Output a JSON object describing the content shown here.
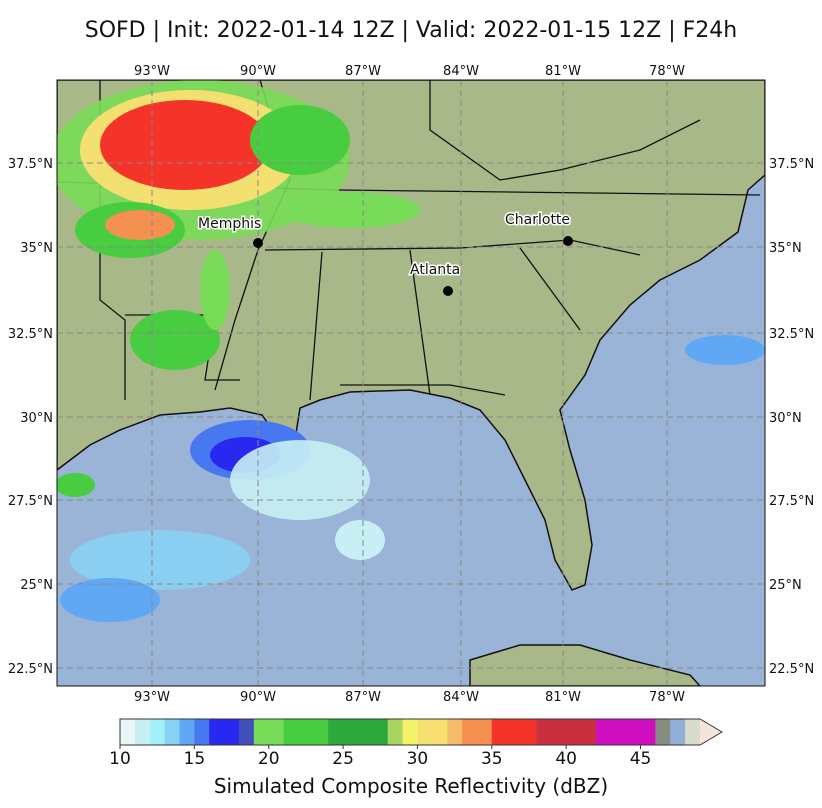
{
  "title": "SOFD | Init: 2022-01-14 12Z | Valid: 2022-01-15 12Z | F24h",
  "map": {
    "longitude_ticks": [
      "93°W",
      "90°W",
      "87°W",
      "84°W",
      "81°W",
      "78°W"
    ],
    "latitude_ticks": [
      "37.5°N",
      "35°N",
      "32.5°N",
      "30°N",
      "27.5°N",
      "25°N",
      "22.5°N"
    ],
    "cities": [
      {
        "name": "Memphis",
        "lon": -90.05,
        "lat": 35.15
      },
      {
        "name": "Atlanta",
        "lon": -84.39,
        "lat": 33.75
      },
      {
        "name": "Charlotte",
        "lon": -80.84,
        "lat": 35.23
      }
    ],
    "ocean_color": "#9ab4d8",
    "land_color": "#a8b888"
  },
  "colorbar": {
    "label": "Simulated Composite Reflectivity (dBZ)",
    "ticks": [
      "10",
      "15",
      "20",
      "25",
      "30",
      "35",
      "40",
      "45"
    ],
    "min": 10,
    "max": 49,
    "extend": "max",
    "levels": [
      {
        "from": 10,
        "to": 11,
        "color": "#e8f6f8"
      },
      {
        "from": 11,
        "to": 12,
        "color": "#c8f0f4"
      },
      {
        "from": 12,
        "to": 13,
        "color": "#a4f0f8"
      },
      {
        "from": 13,
        "to": 14,
        "color": "#88d0f4"
      },
      {
        "from": 14,
        "to": 15,
        "color": "#60a8f4"
      },
      {
        "from": 15,
        "to": 16,
        "color": "#4878f0"
      },
      {
        "from": 16,
        "to": 18,
        "color": "#2828f0"
      },
      {
        "from": 18,
        "to": 19,
        "color": "#4050b8"
      },
      {
        "from": 19,
        "to": 21,
        "color": "#78dc58"
      },
      {
        "from": 21,
        "to": 24,
        "color": "#48cc40"
      },
      {
        "from": 24,
        "to": 28,
        "color": "#2ca83c"
      },
      {
        "from": 28,
        "to": 29,
        "color": "#a8d460"
      },
      {
        "from": 29,
        "to": 30,
        "color": "#f4f468"
      },
      {
        "from": 30,
        "to": 32,
        "color": "#f8e070"
      },
      {
        "from": 32,
        "to": 33,
        "color": "#f4bc68"
      },
      {
        "from": 33,
        "to": 35,
        "color": "#f49050"
      },
      {
        "from": 35,
        "to": 38,
        "color": "#f43428"
      },
      {
        "from": 38,
        "to": 42,
        "color": "#c83040"
      },
      {
        "from": 42,
        "to": 46,
        "color": "#d010c0"
      },
      {
        "from": 46,
        "to": 47,
        "color": "#888c80"
      },
      {
        "from": 47,
        "to": 48,
        "color": "#90b0dc"
      },
      {
        "from": 48,
        "to": 49,
        "color": "#d8dcc8"
      }
    ],
    "extend_color": "#f4e4dc"
  }
}
